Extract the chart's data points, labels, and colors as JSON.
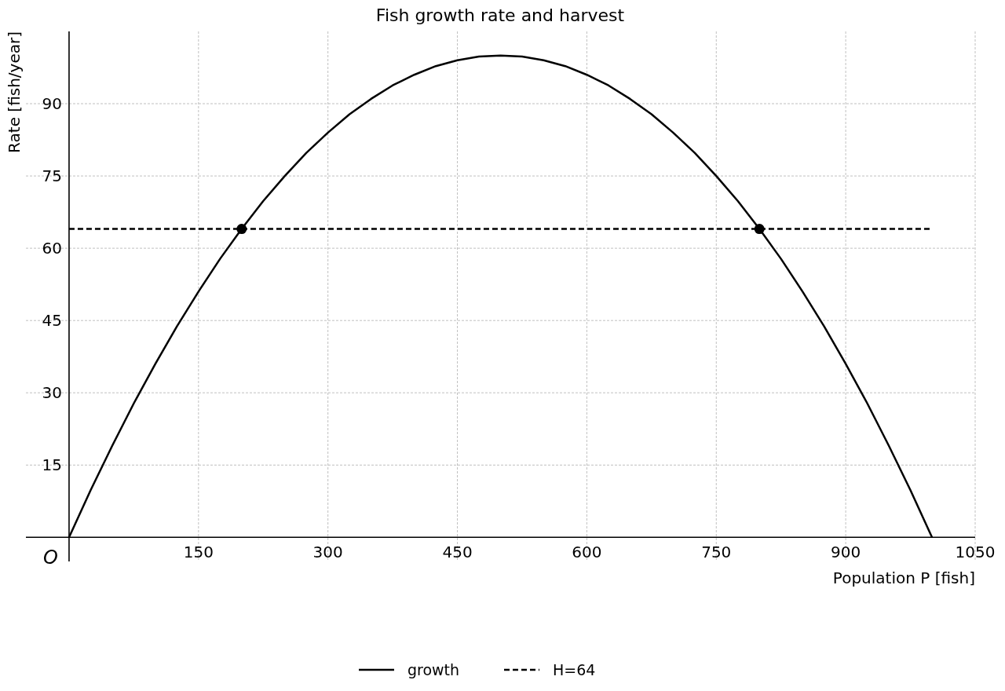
{
  "chart_data": {
    "type": "line",
    "title": "Fish growth rate and harvest",
    "xlabel": "Population P [fish]",
    "ylabel": "Rate [fish/year]",
    "xlim": [
      -50,
      1050
    ],
    "ylim": [
      -5,
      105
    ],
    "xticks": [
      150,
      300,
      450,
      600,
      750,
      900,
      1050
    ],
    "yticks": [
      15,
      30,
      45,
      60,
      75,
      90
    ],
    "grid": true,
    "legend": "bottom",
    "annotations": [
      "O"
    ],
    "series": [
      {
        "name": "growth",
        "color": "#000000",
        "line_style": "solid",
        "x": [
          0,
          25,
          50,
          75,
          100,
          125,
          150,
          175,
          200,
          225,
          250,
          275,
          300,
          325,
          350,
          375,
          400,
          425,
          450,
          475,
          500,
          525,
          550,
          575,
          600,
          625,
          650,
          675,
          700,
          725,
          750,
          775,
          800,
          825,
          850,
          875,
          900,
          925,
          950,
          975,
          1000
        ],
        "values": [
          0,
          9.8,
          19,
          27.8,
          36,
          43.8,
          51,
          57.8,
          64,
          69.8,
          75,
          79.8,
          84,
          87.8,
          91,
          93.8,
          96,
          97.8,
          99,
          99.8,
          100,
          99.8,
          99,
          97.8,
          96,
          93.8,
          91,
          87.8,
          84,
          79.8,
          75,
          69.8,
          64,
          57.8,
          51,
          43.8,
          36,
          27.8,
          19,
          9.8,
          0
        ]
      },
      {
        "name": "H=64",
        "color": "#000000",
        "line_style": "dashed",
        "x": [
          0,
          1000
        ],
        "values": [
          64,
          64
        ]
      },
      {
        "type": "scatter",
        "color": "#000000",
        "marker": "circle",
        "x": [
          200,
          800
        ],
        "values": [
          64,
          64
        ]
      }
    ]
  }
}
